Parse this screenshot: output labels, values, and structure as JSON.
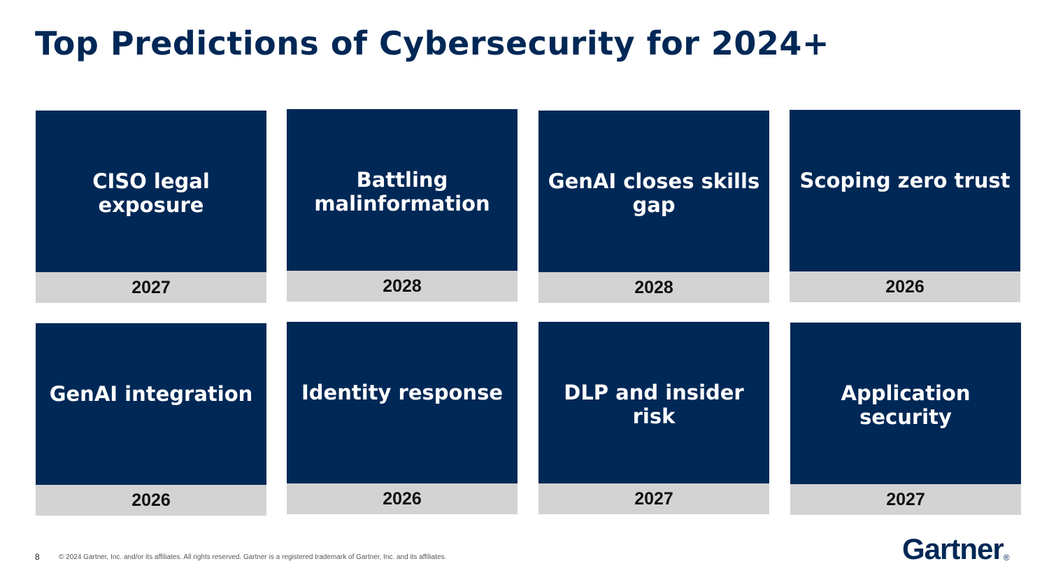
{
  "slide": {
    "title": "Top Predictions of Cybersecurity for 2024+",
    "page_number": "8",
    "copyright": "© 2024 Gartner, Inc. and/or its affiliates. All rights reserved. Gartner is a registered trademark of Gartner, Inc. and its affiliates.",
    "logo_text": "Gartner",
    "logo_mark": "®"
  },
  "predictions": [
    {
      "label": "CISO legal exposure",
      "year": "2027"
    },
    {
      "label": "Battling malinformation",
      "year": "2028"
    },
    {
      "label": "GenAI closes skills gap",
      "year": "2028"
    },
    {
      "label": "Scoping zero trust",
      "year": "2026"
    },
    {
      "label": "GenAI integration",
      "year": "2026"
    },
    {
      "label": "Identity response",
      "year": "2026"
    },
    {
      "label": "DLP and insider risk",
      "year": "2027"
    },
    {
      "label": "Application security",
      "year": "2027"
    }
  ],
  "colors": {
    "navy": "#002856",
    "year_band": "#d3d3d3"
  }
}
